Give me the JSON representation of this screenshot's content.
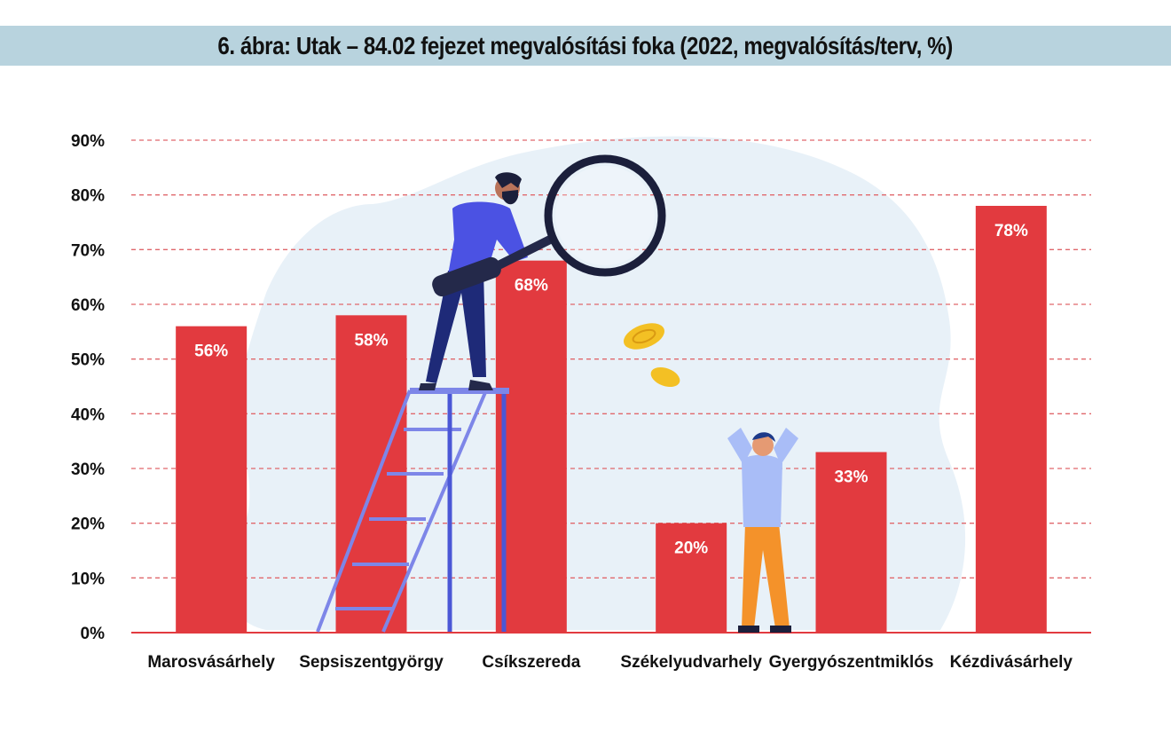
{
  "chart_data": {
    "type": "bar",
    "title": "6. ábra: Utak – 84.02 fejezet megvalósítási foka (2022, megvalósítás/terv, %)",
    "categories": [
      "Marosvásárhely",
      "Sepsiszentgyörgy",
      "Csíkszereda",
      "Székelyudvarhely",
      "Gyergyószentmiklós",
      "Kézdivásárhely"
    ],
    "values": [
      56,
      58,
      68,
      20,
      33,
      78
    ],
    "value_labels": [
      "56%",
      "58%",
      "68%",
      "20%",
      "33%",
      "78%"
    ],
    "y_ticks": [
      "0%",
      "10%",
      "20%",
      "30%",
      "40%",
      "50%",
      "60%",
      "70%",
      "80%",
      "90%"
    ],
    "ylim": [
      0,
      90
    ],
    "grid": true,
    "grid_style": "dashed",
    "bar_color": "#e23a3f",
    "grid_color": "#e0686c"
  }
}
